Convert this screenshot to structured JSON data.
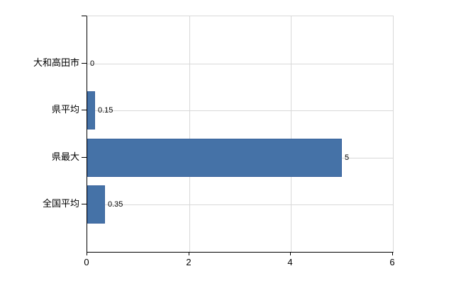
{
  "chart_data": {
    "type": "bar",
    "orientation": "horizontal",
    "title": "",
    "xlabel": "",
    "ylabel": "",
    "categories": [
      "大和高田市",
      "県平均",
      "県最大",
      "全国平均"
    ],
    "values": [
      0,
      0.15,
      5,
      0.35
    ],
    "value_labels": [
      "0",
      "0.15",
      "5",
      "0.35"
    ],
    "xlim": [
      0,
      6
    ],
    "x_ticks": [
      0,
      2,
      4,
      6
    ],
    "x_tick_labels": [
      "0",
      "2",
      "4",
      "6"
    ],
    "grid": true,
    "legend_position": "none",
    "bar_color": "#4572a7",
    "bar_border_color": "#39629c",
    "grid_color": "#d8d8d8",
    "axis_color": "#000000",
    "background_color": "#ffffff"
  }
}
